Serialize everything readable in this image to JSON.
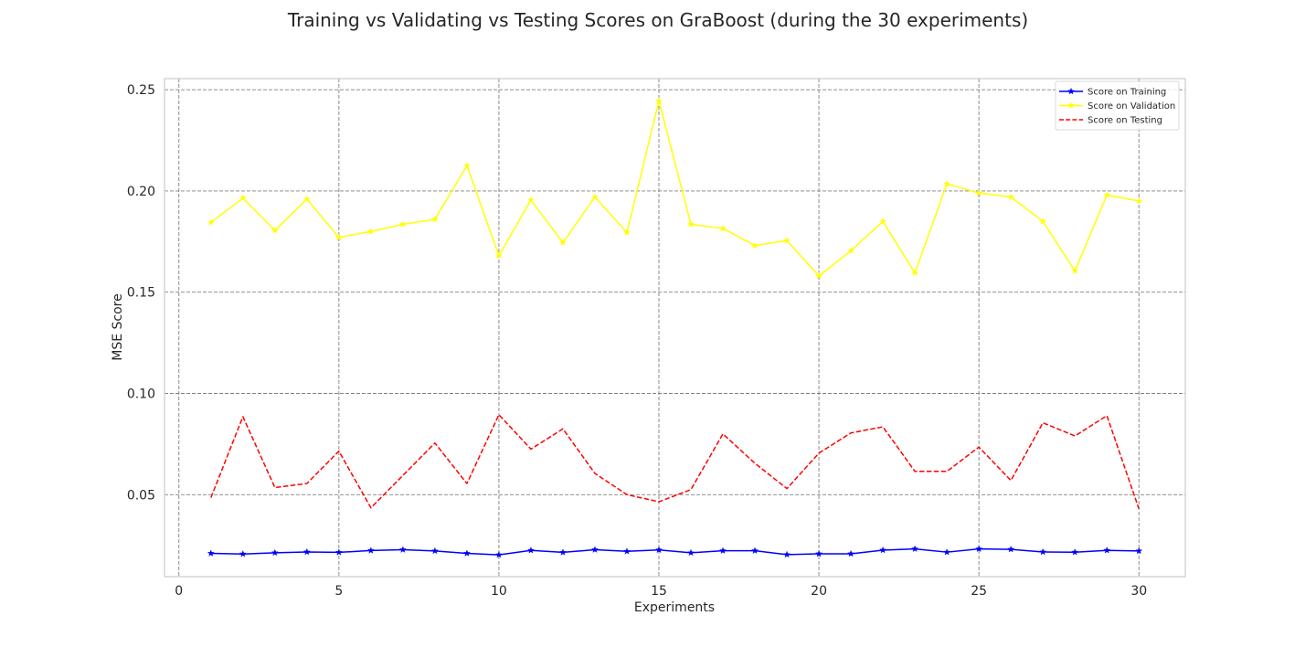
{
  "chart_data": {
    "type": "line",
    "title": "Training vs Validating vs Testing Scores on GraBoost (during the 30 experiments)",
    "xlabel": "Experiments",
    "ylabel": "MSE Score",
    "xlim": [
      -0.45,
      31.45
    ],
    "ylim": [
      0.0095,
      0.2555
    ],
    "xticks": [
      0,
      5,
      10,
      15,
      20,
      25,
      30
    ],
    "yticks": [
      0.05,
      0.1,
      0.15,
      0.2,
      0.25
    ],
    "ytick_labels": [
      "0.05",
      "0.10",
      "0.15",
      "0.20",
      "0.25"
    ],
    "grid": true,
    "legend_position": "top-right",
    "x": [
      1,
      2,
      3,
      4,
      5,
      6,
      7,
      8,
      9,
      10,
      11,
      12,
      13,
      14,
      15,
      16,
      17,
      18,
      19,
      20,
      21,
      22,
      23,
      24,
      25,
      26,
      27,
      28,
      29,
      30
    ],
    "series": [
      {
        "name": "Score on Training",
        "color": "#0000ff",
        "line_style": "solid",
        "marker": "star",
        "values": [
          0.021,
          0.0207,
          0.0213,
          0.0217,
          0.0215,
          0.0224,
          0.0228,
          0.0222,
          0.021,
          0.0203,
          0.0225,
          0.0215,
          0.0228,
          0.022,
          0.0227,
          0.0213,
          0.0223,
          0.0223,
          0.0204,
          0.0208,
          0.0208,
          0.0226,
          0.0232,
          0.0216,
          0.0232,
          0.023,
          0.0217,
          0.0216,
          0.0225,
          0.0222
        ]
      },
      {
        "name": "Score on Validation",
        "color": "#ffff00",
        "line_style": "solid",
        "marker": "star",
        "values": [
          0.1845,
          0.1965,
          0.1805,
          0.196,
          0.177,
          0.18,
          0.1835,
          0.186,
          0.2125,
          0.168,
          0.1955,
          0.1745,
          0.197,
          0.1795,
          0.2445,
          0.1835,
          0.1815,
          0.173,
          0.1755,
          0.158,
          0.1705,
          0.185,
          0.1595,
          0.2035,
          0.199,
          0.197,
          0.185,
          0.1605,
          0.198,
          0.195
        ]
      },
      {
        "name": "Score on Testing",
        "color": "#ff0000",
        "line_style": "dashed",
        "marker": "none",
        "values": [
          0.0485,
          0.0885,
          0.0535,
          0.0555,
          0.0715,
          0.0435,
          0.0595,
          0.0755,
          0.0555,
          0.0895,
          0.0725,
          0.0825,
          0.0605,
          0.05,
          0.0465,
          0.0525,
          0.08,
          0.0655,
          0.053,
          0.0705,
          0.0805,
          0.0835,
          0.0615,
          0.0615,
          0.0735,
          0.057,
          0.0855,
          0.079,
          0.089,
          0.043
        ]
      }
    ]
  }
}
